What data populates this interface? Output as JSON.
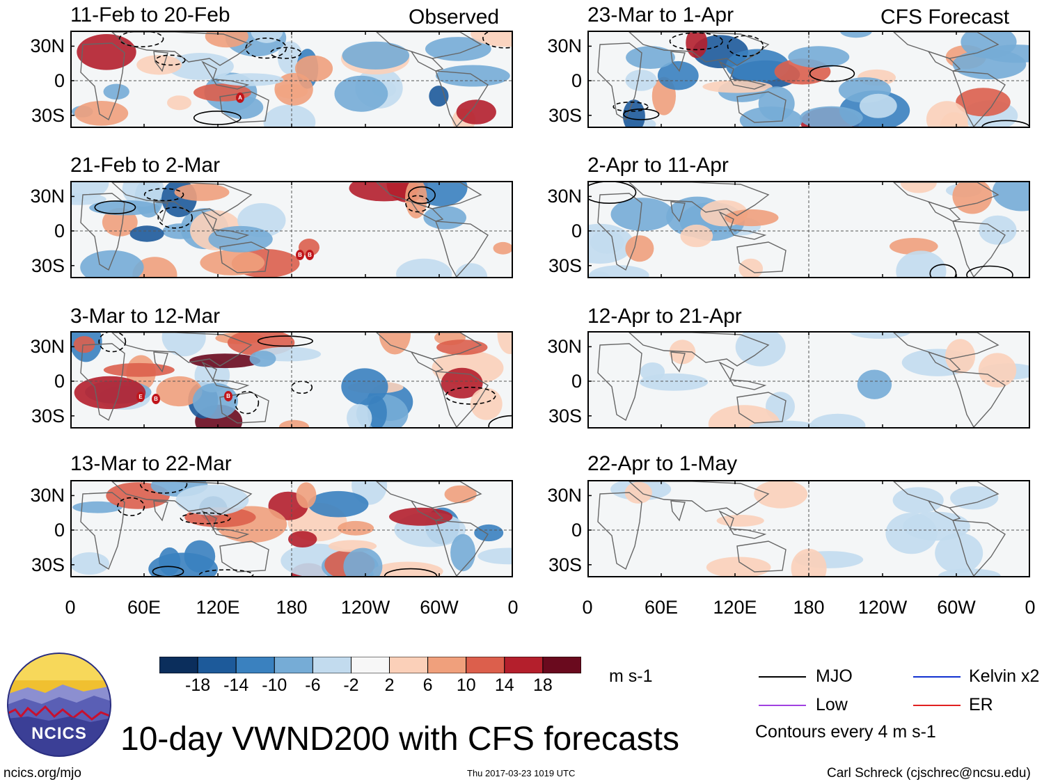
{
  "title": "10-day VWND200 with CFS forecasts",
  "left_header": "Observed",
  "right_header": "CFS Forecast",
  "observed_panels": [
    {
      "label": "11-Feb to 20-Feb"
    },
    {
      "label": "21-Feb to 2-Mar"
    },
    {
      "label": "3-Mar to 12-Mar"
    },
    {
      "label": "13-Mar to 22-Mar"
    }
  ],
  "forecast_panels": [
    {
      "label": "23-Mar to 1-Apr"
    },
    {
      "label": "2-Apr to 11-Apr"
    },
    {
      "label": "12-Apr to 21-Apr"
    },
    {
      "label": "22-Apr to 1-May"
    }
  ],
  "lat_labels": [
    "30N",
    "0",
    "30S"
  ],
  "lon_labels": [
    "0",
    "60E",
    "120E",
    "180",
    "120W",
    "60W",
    "0"
  ],
  "colorbar": {
    "ticks": [
      "-18",
      "-14",
      "-10",
      "-6",
      "-2",
      "2",
      "6",
      "10",
      "14",
      "18"
    ],
    "colors": [
      "#0b2e5c",
      "#1d5a9a",
      "#3a81bf",
      "#76acd6",
      "#c2dbee",
      "#f7f7f7",
      "#fbd0b9",
      "#f0a07c",
      "#dc5f4c",
      "#b41f2c",
      "#6a0a1e"
    ],
    "unit": "m s-1"
  },
  "legend": {
    "items": [
      {
        "label": "MJO",
        "color": "#000000"
      },
      {
        "label": "Kelvin x2",
        "color": "#1030d0"
      },
      {
        "label": "Low",
        "color": "#a040e0"
      },
      {
        "label": "ER",
        "color": "#e02020"
      }
    ],
    "contour_note": "Contours every 4 m s-1"
  },
  "logo_text": "NCICS",
  "footer": {
    "url": "ncics.org/mjo",
    "timestamp": "Thu 2017-03-23 1019 UTC",
    "author": "Carl Schreck (cjschrec@ncsu.edu)"
  },
  "storm_markers": [
    {
      "panel": 0,
      "label": "A"
    },
    {
      "panel": 1,
      "label": "B"
    },
    {
      "panel": 1,
      "label": "B"
    },
    {
      "panel": 2,
      "label": "E"
    },
    {
      "panel": 2,
      "label": "B"
    },
    {
      "panel": 2,
      "label": "B"
    }
  ]
}
